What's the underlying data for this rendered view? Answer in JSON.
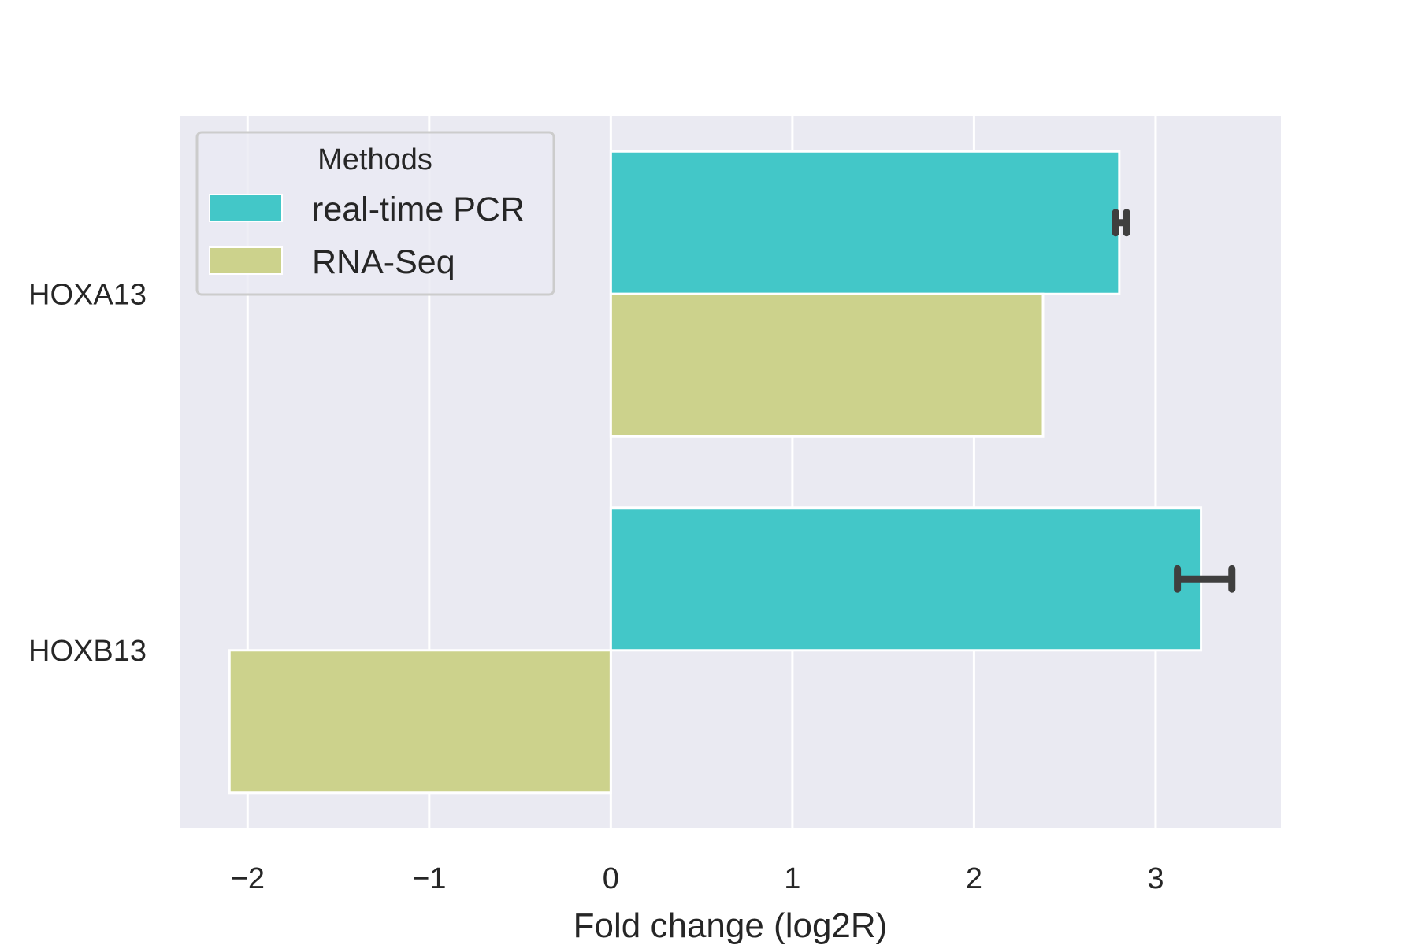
{
  "chart_data": {
    "type": "bar",
    "orientation": "horizontal",
    "categories": [
      "HOXA13",
      "HOXB13"
    ],
    "series": [
      {
        "name": "real-time PCR",
        "values": [
          2.8,
          3.25
        ],
        "error": [
          [
            2.78,
            2.84
          ],
          [
            3.12,
            3.42
          ]
        ],
        "color": "#43C7C8"
      },
      {
        "name": "RNA-Seq",
        "values": [
          2.38,
          -2.1
        ],
        "color": "#CCD28C"
      }
    ],
    "xlabel": "Fold change (log2R)",
    "ylabel": "",
    "title": "",
    "xlim": [
      -2.37,
      3.69
    ],
    "xticks": [
      -2,
      -1,
      0,
      1,
      2,
      3
    ],
    "xtick_labels": [
      "−2",
      "−1",
      "0",
      "1",
      "2",
      "3"
    ],
    "grid": true,
    "legend": {
      "title": "Methods",
      "placement": "top-left"
    },
    "colors": {
      "background": "#EAEAF2",
      "grid": "#FFFFFF",
      "errorbar": "#3F3F3F",
      "text": "#262626"
    }
  }
}
